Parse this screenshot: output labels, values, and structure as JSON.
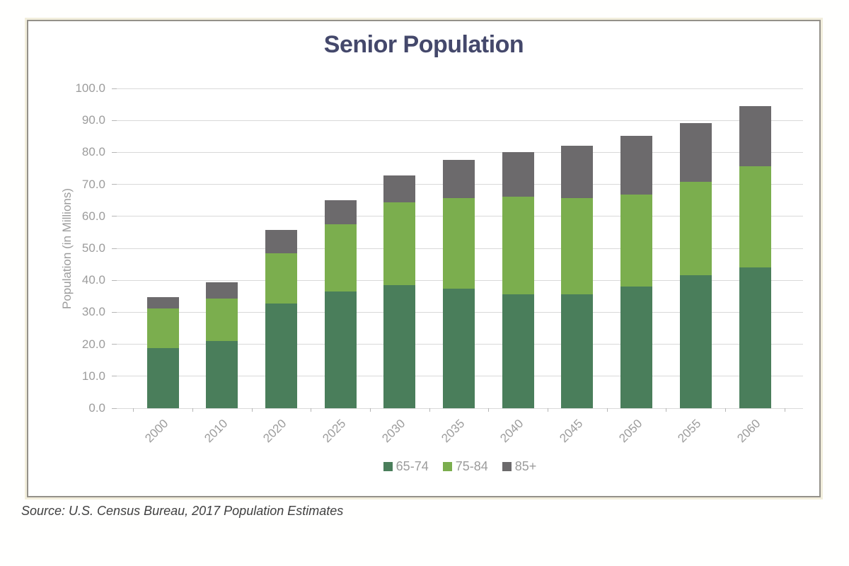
{
  "source": {
    "text": "Source: U.S. Census Bureau, 2017 Population Estimates"
  },
  "colors": {
    "title": "#44486B",
    "axis_text": "#9C9C9C",
    "grid": "#D9D9D9",
    "panel_border": "#94918A",
    "panel_halo": "#F2EEDC",
    "source_text": "#3F3F3F",
    "series_65_74": "#4A7E5B",
    "series_75_84": "#7BAE4E",
    "series_85_plus": "#6C6A6C"
  },
  "chart_data": {
    "type": "bar",
    "stacked": true,
    "title": "Senior Population",
    "xlabel": "",
    "ylabel": "Population (in Millions)",
    "categories": [
      "2000",
      "2010",
      "2020",
      "2025",
      "2030",
      "2035",
      "2040",
      "2045",
      "2050",
      "2055",
      "2060"
    ],
    "series": [
      {
        "name": "65-74",
        "color": "#4A7E5B",
        "values": [
          18.7,
          21.1,
          32.7,
          36.6,
          38.6,
          37.3,
          35.7,
          35.7,
          38.1,
          41.5,
          44.0
        ]
      },
      {
        "name": "75-84",
        "color": "#7BAE4E",
        "values": [
          12.4,
          13.3,
          15.8,
          21.0,
          25.8,
          28.5,
          30.4,
          30.0,
          28.7,
          29.4,
          31.7
        ]
      },
      {
        "name": "85+",
        "color": "#6C6A6C",
        "values": [
          3.6,
          5.0,
          7.3,
          7.5,
          8.3,
          11.8,
          14.0,
          16.4,
          18.4,
          18.2,
          18.8
        ]
      }
    ],
    "totals": [
      34.7,
      39.4,
      55.8,
      65.1,
      72.7,
      77.6,
      80.1,
      82.1,
      85.2,
      89.1,
      94.5
    ],
    "ylim": [
      0,
      100
    ],
    "ytick_step": 10,
    "ytick_labels": [
      "0.0",
      "10.0",
      "20.0",
      "30.0",
      "40.0",
      "50.0",
      "60.0",
      "70.0",
      "80.0",
      "90.0",
      "100.0"
    ],
    "grid": true,
    "legend_position": "bottom",
    "legend": [
      "65-74",
      "75-84",
      "85+"
    ]
  }
}
